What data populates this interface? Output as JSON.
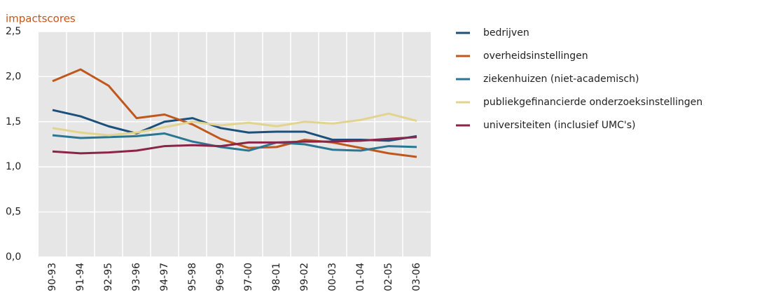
{
  "chart_data": {
    "type": "line",
    "y_label": "impactscores",
    "categories": [
      "90-93",
      "91-94",
      "92-95",
      "93-96",
      "94-97",
      "95-98",
      "96-99",
      "97-00",
      "98-01",
      "99-02",
      "00-03",
      "01-04",
      "02-05",
      "03-06"
    ],
    "series": [
      {
        "name": "bedrijven",
        "color": "#1b4f7c",
        "values": [
          1.63,
          1.56,
          1.45,
          1.37,
          1.5,
          1.54,
          1.43,
          1.38,
          1.39,
          1.39,
          1.3,
          1.3,
          1.29,
          1.34
        ]
      },
      {
        "name": "overheidsinstellingen",
        "color": "#c0571d",
        "values": [
          1.95,
          2.08,
          1.9,
          1.54,
          1.58,
          1.47,
          1.31,
          1.21,
          1.22,
          1.3,
          1.27,
          1.21,
          1.15,
          1.11
        ]
      },
      {
        "name": "ziekenhuizen (niet-academisch)",
        "color": "#2b7793",
        "values": [
          1.35,
          1.32,
          1.33,
          1.34,
          1.37,
          1.28,
          1.22,
          1.18,
          1.27,
          1.25,
          1.19,
          1.18,
          1.23,
          1.22
        ]
      },
      {
        "name": "publiekgefinancierde onderzoeksinstellingen",
        "color": "#e2d48e",
        "values": [
          1.43,
          1.38,
          1.35,
          1.38,
          1.44,
          1.5,
          1.46,
          1.49,
          1.45,
          1.5,
          1.48,
          1.52,
          1.59,
          1.51
        ]
      },
      {
        "name": "universiteiten (inclusief UMC's)",
        "color": "#8c2447",
        "values": [
          1.17,
          1.15,
          1.16,
          1.18,
          1.23,
          1.24,
          1.23,
          1.27,
          1.27,
          1.28,
          1.28,
          1.29,
          1.31,
          1.33
        ]
      }
    ],
    "ylim": [
      0,
      2.5
    ],
    "yticks": [
      {
        "value": 0,
        "label": "0,0"
      },
      {
        "value": 0.5,
        "label": "0,5"
      },
      {
        "value": 1,
        "label": "1,0"
      },
      {
        "value": 1.5,
        "label": "1,5"
      },
      {
        "value": 2,
        "label": "2,0"
      },
      {
        "value": 2.5,
        "label": "2,5"
      }
    ],
    "grid": true
  }
}
